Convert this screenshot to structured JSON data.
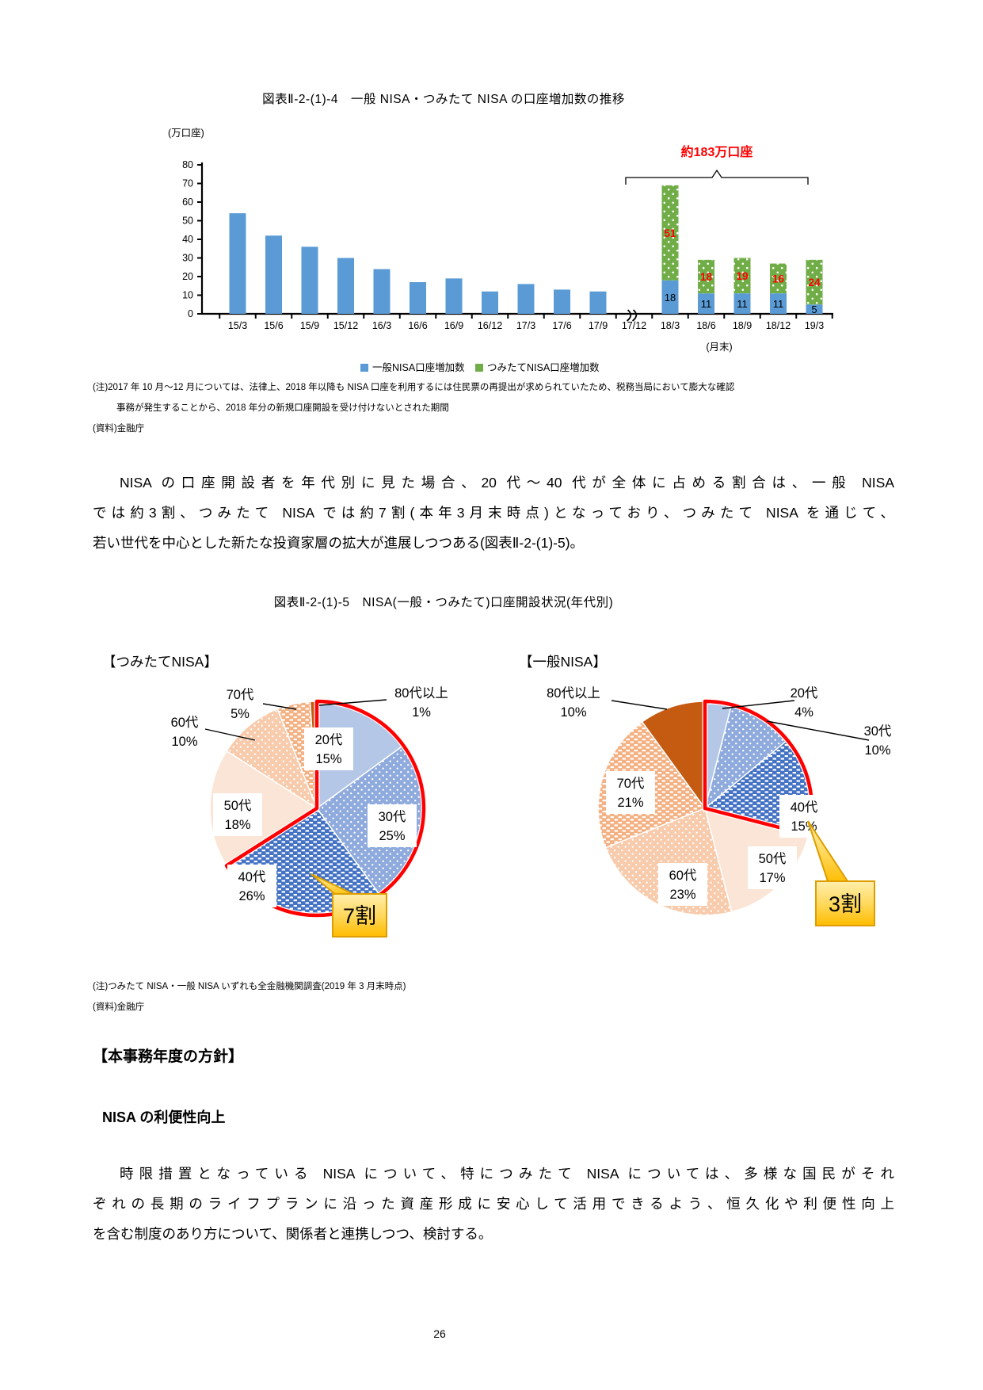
{
  "page_number": "26",
  "headings": {
    "fig5_title": "図表Ⅱ-2-(1)-5　NISA(一般・つみたて)口座開設状況(年代別)",
    "policy": "【本事務年度の方針】",
    "convenience": "NISA の利便性向上"
  },
  "paragraphs": {
    "p1": [
      "NISA の口座開設者を年代別に見た場合、20 代〜40 代が全体に占める割合は、一般 NISA",
      "では約3割、つみたて NISA では約7割(本年3月末時点)となっており、つみたて NISA を通じて、",
      "若い世代を中心とした新たな投資家層の拡大が進展しつつある(図表Ⅱ-2-(1)-5)。"
    ],
    "p2": [
      "時限措置となっている NISA について、特につみたて NISA については、多様な国民がそれ",
      "ぞれの長期のライフプランに沿った資産形成に安心して活用できるよう、恒久化や利便性向上",
      "を含む制度のあり方について、関係者と連携しつつ、検討する。"
    ]
  },
  "fig4_notes": [
    "(注)2017 年 10 月〜12 月については、法律上、2018 年以降も NISA 口座を利用するには住民票の再提出が求められていたため、税務当局において膨大な確認",
    "事務が発生することから、2018 年分の新規口座開設を受け付けないとされた期間",
    "(資料)金融庁"
  ],
  "fig5_notes": [
    "(注)つみたて NISA・一般 NISA いずれも全金融機関調査(2019 年 3 月末時点)",
    "(資料)金融庁"
  ],
  "chart_data": [
    {
      "type": "bar",
      "stacked": true,
      "title": "図表Ⅱ-2-(1)-4　一般 NISA・つみたて NISA の口座増加数の推移",
      "y_axis_unit": "(万口座)",
      "x_axis_unit": "(月末)",
      "ylim": [
        0,
        80
      ],
      "ytick_step": 10,
      "categories": [
        "15/3",
        "15/6",
        "15/9",
        "15/12",
        "16/3",
        "16/6",
        "16/9",
        "16/12",
        "17/3",
        "17/6",
        "17/9",
        "17/12",
        "18/3",
        "18/6",
        "18/9",
        "18/12",
        "19/3"
      ],
      "series": [
        {
          "name": "一般NISA口座増加数",
          "color": "#5B9BD5",
          "pattern": "solid",
          "label_color": "#000000",
          "values": [
            54,
            42,
            36,
            30,
            24,
            17,
            19,
            12,
            16,
            13,
            12,
            0,
            18,
            11,
            11,
            11,
            5
          ],
          "bar_labels": [
            null,
            null,
            null,
            null,
            null,
            null,
            null,
            null,
            null,
            null,
            null,
            null,
            "18",
            "11",
            "11",
            "11",
            "5"
          ]
        },
        {
          "name": "つみたてNISA口座増加数",
          "color": "#70AD47",
          "pattern": "white-dots",
          "label_color": "#FF0000",
          "values": [
            0,
            0,
            0,
            0,
            0,
            0,
            0,
            0,
            0,
            0,
            0,
            0,
            51,
            18,
            19,
            16,
            24
          ],
          "bar_labels": [
            null,
            null,
            null,
            null,
            null,
            null,
            null,
            null,
            null,
            null,
            null,
            null,
            "51",
            "18",
            "19",
            "16",
            "24"
          ]
        }
      ],
      "annotation": {
        "text": "約183万口座",
        "color": "#FF0000",
        "span": [
          "18/3",
          "19/3"
        ]
      },
      "axis_break_before": "17/12"
    },
    {
      "type": "pie",
      "title": "【つみたてNISA】",
      "start": "top-clockwise",
      "slices": [
        {
          "label": "20代",
          "pct": "15%",
          "value": 15,
          "color": "#B4C7E7",
          "pattern": "solid"
        },
        {
          "label": "30代",
          "pct": "25%",
          "value": 25,
          "color": "#8FAADC",
          "pattern": "white-dots"
        },
        {
          "label": "40代",
          "pct": "26%",
          "value": 26,
          "color": "#4472C4",
          "pattern": "white-dashes"
        },
        {
          "label": "50代",
          "pct": "18%",
          "value": 18,
          "color": "#FBE5D6",
          "pattern": "solid"
        },
        {
          "label": "60代",
          "pct": "10%",
          "value": 10,
          "color": "#F7CBAC",
          "pattern": "white-dots"
        },
        {
          "label": "70代",
          "pct": "5%",
          "value": 5,
          "color": "#F4B183",
          "pattern": "white-dashes"
        },
        {
          "label": "80代以上",
          "pct": "1%",
          "value": 1,
          "color": "#C55A11",
          "pattern": "solid"
        }
      ],
      "highlight": {
        "slice_labels": [
          "20代",
          "30代",
          "40代"
        ],
        "outline_color": "#FF0000",
        "callout_text": "7割",
        "callout_fill": "#FFC000"
      }
    },
    {
      "type": "pie",
      "title": "【一般NISA】",
      "start": "top-clockwise",
      "slices": [
        {
          "label": "20代",
          "pct": "4%",
          "value": 4,
          "color": "#B4C7E7",
          "pattern": "solid"
        },
        {
          "label": "30代",
          "pct": "10%",
          "value": 10,
          "color": "#8FAADC",
          "pattern": "white-dots"
        },
        {
          "label": "40代",
          "pct": "15%",
          "value": 15,
          "color": "#4472C4",
          "pattern": "white-dashes"
        },
        {
          "label": "50代",
          "pct": "17%",
          "value": 17,
          "color": "#FBE5D6",
          "pattern": "solid"
        },
        {
          "label": "60代",
          "pct": "23%",
          "value": 23,
          "color": "#F7CBAC",
          "pattern": "white-dots"
        },
        {
          "label": "70代",
          "pct": "21%",
          "value": 21,
          "color": "#F4B183",
          "pattern": "white-dashes"
        },
        {
          "label": "80代以上",
          "pct": "10%",
          "value": 10,
          "color": "#C55A11",
          "pattern": "solid"
        }
      ],
      "highlight": {
        "slice_labels": [
          "20代",
          "30代",
          "40代"
        ],
        "outline_color": "#FF0000",
        "callout_text": "3割",
        "callout_fill": "#FFC000"
      }
    }
  ]
}
